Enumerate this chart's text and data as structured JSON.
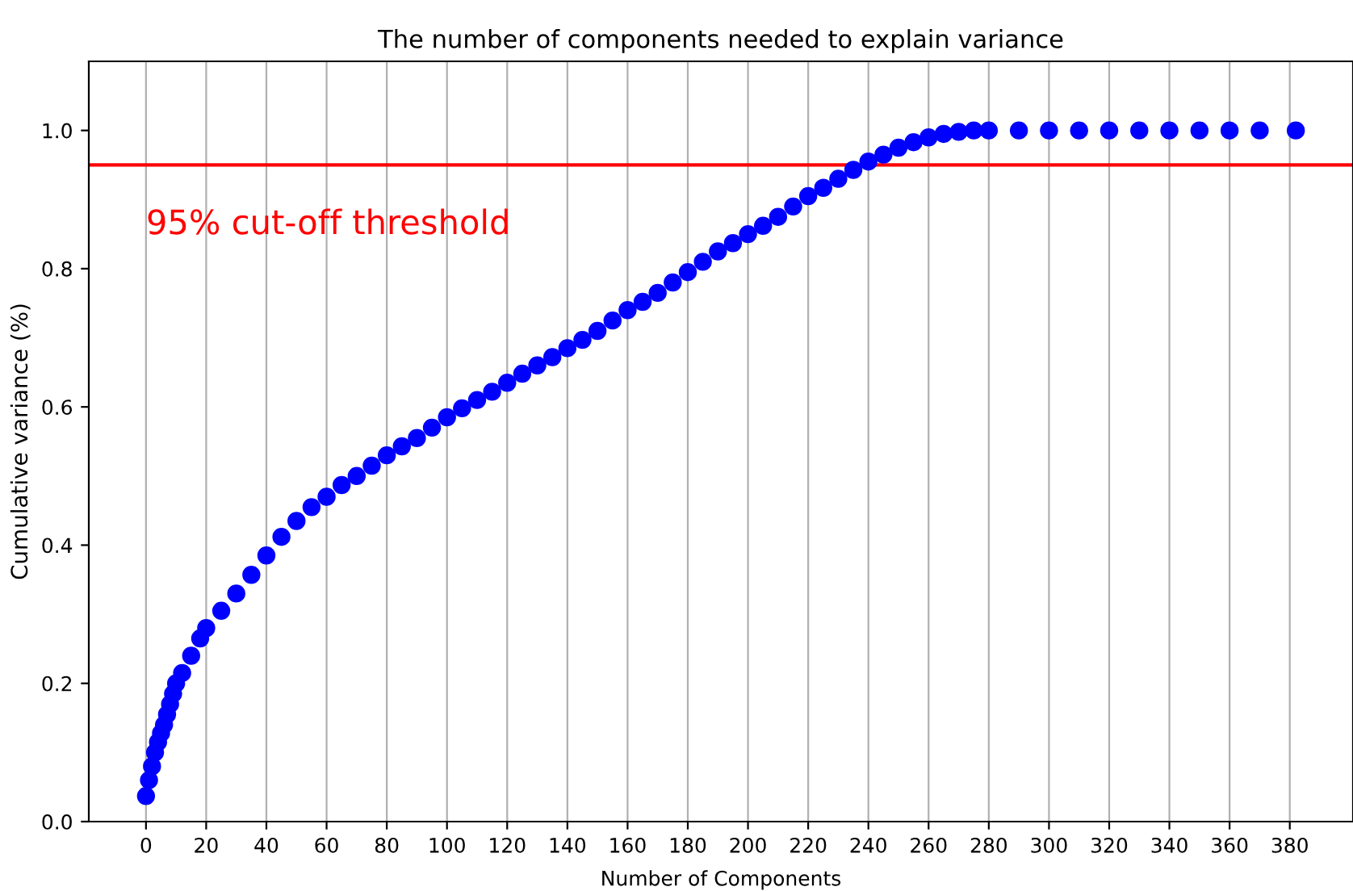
{
  "chart_data": {
    "type": "scatter",
    "title": "The number of components needed to explain variance",
    "xlabel": "Number of Components",
    "ylabel": "Cumulative variance (%)",
    "marker": "circle",
    "series": [
      {
        "color": "#0000ff",
        "x": [
          0,
          1,
          2,
          3,
          4,
          5,
          6,
          7,
          8,
          9,
          10,
          12,
          15,
          18,
          20,
          25,
          30,
          35,
          40,
          45,
          50,
          55,
          60,
          65,
          70,
          75,
          80,
          85,
          90,
          95,
          100,
          105,
          110,
          115,
          120,
          125,
          130,
          135,
          140,
          145,
          150,
          155,
          160,
          165,
          170,
          175,
          180,
          185,
          190,
          195,
          200,
          205,
          210,
          215,
          220,
          225,
          230,
          235,
          240,
          245,
          250,
          255,
          260,
          265,
          270,
          275,
          280,
          290,
          300,
          310,
          320,
          330,
          340,
          350,
          360,
          370,
          382
        ],
        "values": [
          0.037,
          0.06,
          0.08,
          0.1,
          0.115,
          0.128,
          0.14,
          0.155,
          0.17,
          0.185,
          0.2,
          0.215,
          0.24,
          0.265,
          0.28,
          0.305,
          0.33,
          0.357,
          0.385,
          0.412,
          0.435,
          0.455,
          0.47,
          0.487,
          0.5,
          0.515,
          0.53,
          0.543,
          0.555,
          0.57,
          0.585,
          0.598,
          0.61,
          0.622,
          0.635,
          0.648,
          0.66,
          0.672,
          0.685,
          0.697,
          0.71,
          0.725,
          0.74,
          0.752,
          0.765,
          0.78,
          0.795,
          0.81,
          0.825,
          0.837,
          0.85,
          0.862,
          0.875,
          0.89,
          0.905,
          0.917,
          0.93,
          0.943,
          0.955,
          0.965,
          0.975,
          0.983,
          0.99,
          0.995,
          0.998,
          1.0,
          1.0,
          1.0,
          1.0,
          1.0,
          1.0,
          1.0,
          1.0,
          1.0,
          1.0,
          1.0,
          1.0
        ]
      }
    ],
    "xlim": [
      -19,
      401
    ],
    "ylim": [
      0,
      1.1
    ],
    "xticks": [
      0,
      20,
      40,
      60,
      80,
      100,
      120,
      140,
      160,
      180,
      200,
      220,
      240,
      260,
      280,
      300,
      320,
      340,
      360,
      380
    ],
    "yticks": [
      {
        "value": 0,
        "label": "0.0"
      },
      {
        "value": 0.2,
        "label": "0.2"
      },
      {
        "value": 0.4,
        "label": "0.4"
      },
      {
        "value": 0.6,
        "label": "0.6"
      },
      {
        "value": 0.8,
        "label": "0.8"
      },
      {
        "value": 1.0,
        "label": "1.0"
      }
    ],
    "ref_lines": [
      {
        "axis": "y",
        "value": 0.95,
        "label": "95% cut-off threshold",
        "color": "#ff0000",
        "line_style": "solid"
      }
    ],
    "grid": "x"
  }
}
